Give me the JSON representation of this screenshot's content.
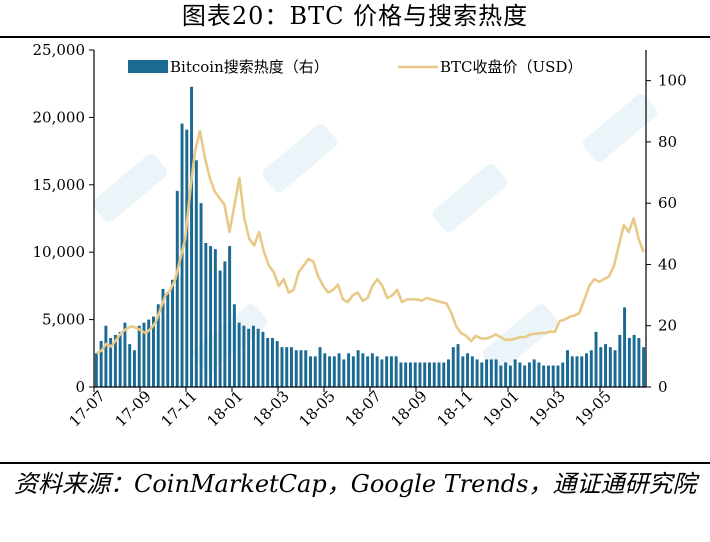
{
  "title": "图表20：BTC 价格与搜索热度",
  "source": "资料来源：CoinMarketCap，Google Trends，通证通研究院",
  "chart_data": {
    "type": "bar+line",
    "x_axis": {
      "tick_labels": [
        "17-07",
        "17-09",
        "17-11",
        "18-01",
        "18-03",
        "18-05",
        "18-07",
        "18-09",
        "18-11",
        "19-01",
        "19-03",
        "19-05"
      ]
    },
    "y_left": {
      "range": [
        0,
        25000
      ],
      "tick_labels": [
        "0",
        "5,000",
        "10,000",
        "15,000",
        "20,000",
        "25,000"
      ],
      "tick_values": [
        0,
        5000,
        10000,
        15000,
        20000,
        25000
      ]
    },
    "y_right": {
      "range": [
        0,
        110
      ],
      "tick_labels": [
        "0",
        "20",
        "40",
        "60",
        "80",
        "100"
      ],
      "tick_values": [
        0,
        20,
        40,
        60,
        80,
        100
      ]
    },
    "legend": {
      "position": "top",
      "entries": [
        "Bitcoin搜索热度（右）",
        "BTC收盘价（USD）"
      ]
    },
    "colors": {
      "bars": "#1a6a94",
      "line": "#e8c987"
    },
    "series": [
      {
        "name": "Bitcoin搜索热度（右）",
        "kind": "bar",
        "axis": "right",
        "values": [
          11,
          15,
          20,
          16,
          17,
          18,
          21,
          14,
          12,
          20,
          21,
          22,
          23,
          27,
          32,
          31,
          35,
          64,
          86,
          84,
          98,
          74,
          60,
          47,
          46,
          45,
          38,
          41,
          46,
          27,
          21,
          20,
          19,
          20,
          19,
          18,
          16,
          16,
          15,
          13,
          13,
          13,
          12,
          12,
          12,
          10,
          10,
          13,
          11,
          10,
          10,
          11,
          9,
          11,
          10,
          12,
          11,
          10,
          11,
          10,
          9,
          10,
          10,
          10,
          8,
          8,
          8,
          8,
          8,
          8,
          8,
          8,
          8,
          8,
          9,
          13,
          14,
          10,
          11,
          10,
          9,
          8,
          9,
          9,
          9,
          7,
          8,
          7,
          9,
          8,
          7,
          8,
          9,
          8,
          7,
          7,
          7,
          7,
          8,
          12,
          10,
          10,
          10,
          11,
          12,
          18,
          13,
          14,
          13,
          12,
          17,
          26,
          16,
          17,
          16,
          13
        ]
      },
      {
        "name": "BTC收盘价（USD）",
        "kind": "line",
        "axis": "left",
        "values": [
          2500,
          2700,
          3200,
          3000,
          3500,
          4000,
          4300,
          4500,
          4400,
          4200,
          4000,
          4300,
          4800,
          5800,
          6800,
          7200,
          8000,
          9500,
          11000,
          14500,
          17500,
          19000,
          17000,
          15500,
          14500,
          14000,
          13500,
          11500,
          13500,
          15500,
          12500,
          11000,
          10500,
          11500,
          10000,
          9000,
          8500,
          7500,
          8000,
          7000,
          7200,
          8500,
          9000,
          9500,
          9300,
          8200,
          7500,
          7000,
          7200,
          7600,
          6500,
          6300,
          6800,
          7000,
          6400,
          6600,
          7500,
          8000,
          7500,
          6600,
          6800,
          7200,
          6300,
          6500,
          6500,
          6500,
          6400,
          6600,
          6500,
          6400,
          6300,
          6200,
          5500,
          4500,
          4000,
          3800,
          3400,
          3800,
          3600,
          3600,
          3700,
          3900,
          3700,
          3500,
          3500,
          3600,
          3700,
          3700,
          3900,
          3950,
          4000,
          4000,
          4100,
          4100,
          4900,
          5000,
          5200,
          5300,
          5500,
          6500,
          7500,
          8000,
          7800,
          8000,
          8200,
          9000,
          10500,
          12000,
          11500,
          12500,
          11000,
          10000
        ]
      }
    ]
  }
}
